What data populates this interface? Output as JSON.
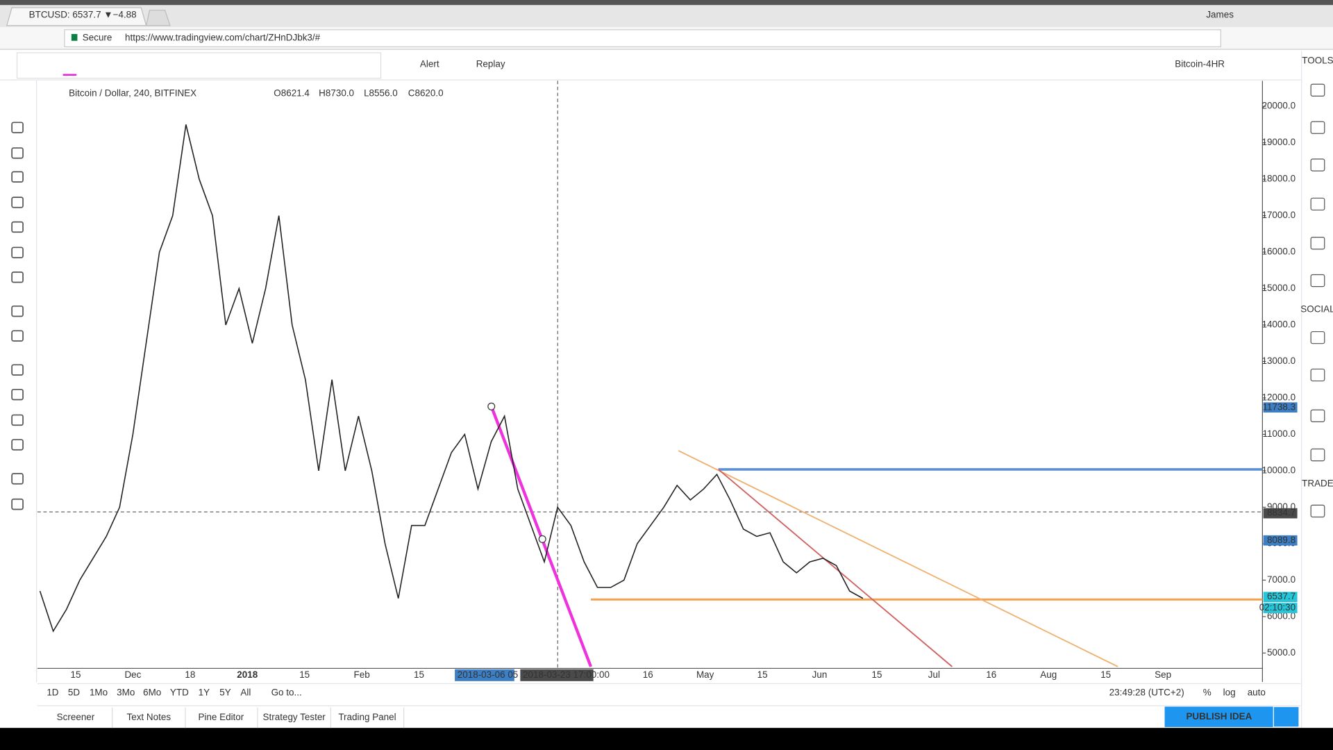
{
  "browser": {
    "tab_title": "BTCUSD: 6537.7 ▼−4.88",
    "user": "James",
    "secure": "Secure",
    "url": "https://www.tradingview.com/chart/ZHnDJbk3/#"
  },
  "toolbar": {
    "alert": "Alert",
    "replay": "Replay",
    "layout": "Bitcoin-4HR"
  },
  "chart": {
    "symbol": "Bitcoin / Dollar, 240, BITFINEX",
    "ohlc": [
      "O8621.4",
      "H8730.0",
      "L8556.0",
      "C8620.0"
    ],
    "ylim": [
      4579,
      20701
    ],
    "yticks": [
      {
        "value": 20000,
        "label": "20000.0"
      },
      {
        "value": 19000,
        "label": "19000.0"
      },
      {
        "value": 18000,
        "label": "18000.0"
      },
      {
        "value": 17000,
        "label": "17000.0"
      },
      {
        "value": 16000,
        "label": "16000.0"
      },
      {
        "value": 15000,
        "label": "15000.0"
      },
      {
        "value": 14000,
        "label": "14000.0"
      },
      {
        "value": 13000,
        "label": "13000.0"
      },
      {
        "value": 12000,
        "label": "12000.0"
      },
      {
        "value": 11000,
        "label": "11000.0"
      },
      {
        "value": 10000,
        "label": "10000.0"
      },
      {
        "value": 9000,
        "label": "9000.0"
      },
      {
        "value": 8000,
        "label": "8000.0"
      },
      {
        "value": 7000,
        "label": "7000.0"
      },
      {
        "value": 6000,
        "label": "6000.0"
      },
      {
        "value": 5000,
        "label": "5000.0"
      }
    ],
    "price_labels": [
      {
        "value": 11738.3,
        "label": "11738.3",
        "color": "#3d7fc4"
      },
      {
        "value": 8834.7,
        "label": "8834.7",
        "color": "#4a4a4a"
      },
      {
        "value": 8089.8,
        "label": "8089.8",
        "color": "#3d7fc4"
      },
      {
        "value": 6537.7,
        "label": "6537.7",
        "color": "#26c6da"
      }
    ],
    "countdown": "02:10:30",
    "xticks": [
      "15",
      "Dec",
      "18",
      "2018",
      "15",
      "Feb",
      "15",
      null,
      null,
      null,
      "16",
      "May",
      "15",
      "Jun",
      "15",
      "Jul",
      "16",
      "Aug",
      "15",
      "Sep"
    ],
    "cursor_dates": [
      "2018-03-06 05",
      "2018-03-23 17:00:00"
    ],
    "price": [
      6700,
      5600,
      6200,
      7000,
      7600,
      8200,
      9000,
      11000,
      13500,
      16000,
      17000,
      19500,
      18000,
      17000,
      14000,
      15000,
      13500,
      15000,
      17000,
      14000,
      12500,
      10000,
      12500,
      10000,
      11500,
      10000,
      8000,
      6500,
      8500,
      8500,
      9500,
      10500,
      11000,
      9500,
      10800,
      11500,
      9500,
      8500,
      7500,
      9000,
      8500,
      7500,
      6800,
      6800,
      7000,
      8000,
      8500,
      9000,
      9600,
      9200,
      9500,
      9900,
      9200,
      8400,
      8200,
      8300,
      7500,
      7200,
      7500,
      7600,
      7400,
      6700,
      6500
    ]
  },
  "range_buttons": [
    "1D",
    "5D",
    "1Mo",
    "3Mo",
    "6Mo",
    "YTD",
    "1Y",
    "5Y",
    "All",
    "Go to..."
  ],
  "clock": "23:49:28 (UTC+2)",
  "scale_buttons": [
    "%",
    "log",
    "auto"
  ],
  "bottom_tabs": [
    "Screener",
    "Text Notes",
    "Pine Editor",
    "Strategy Tester",
    "Trading Panel"
  ],
  "publish": "PUBLISH IDEA",
  "sidebar": [
    "TOOLS",
    "SOCIAL",
    "TRADE"
  ]
}
